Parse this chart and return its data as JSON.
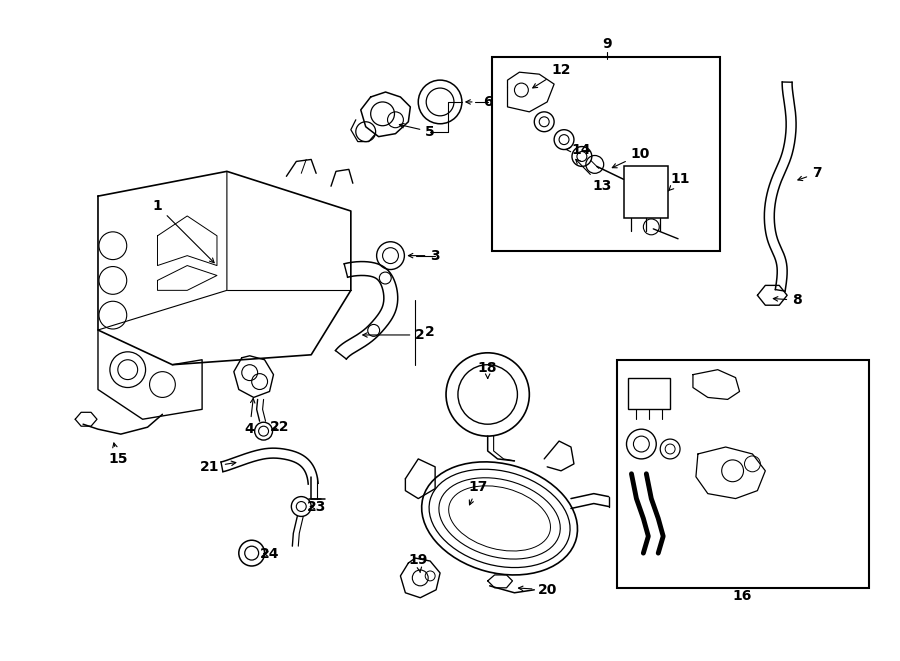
{
  "bg_color": "#ffffff",
  "line_color": "#000000",
  "lw": 1.0,
  "fs": 10,
  "figsize": [
    9.0,
    6.61
  ],
  "dpi": 100
}
